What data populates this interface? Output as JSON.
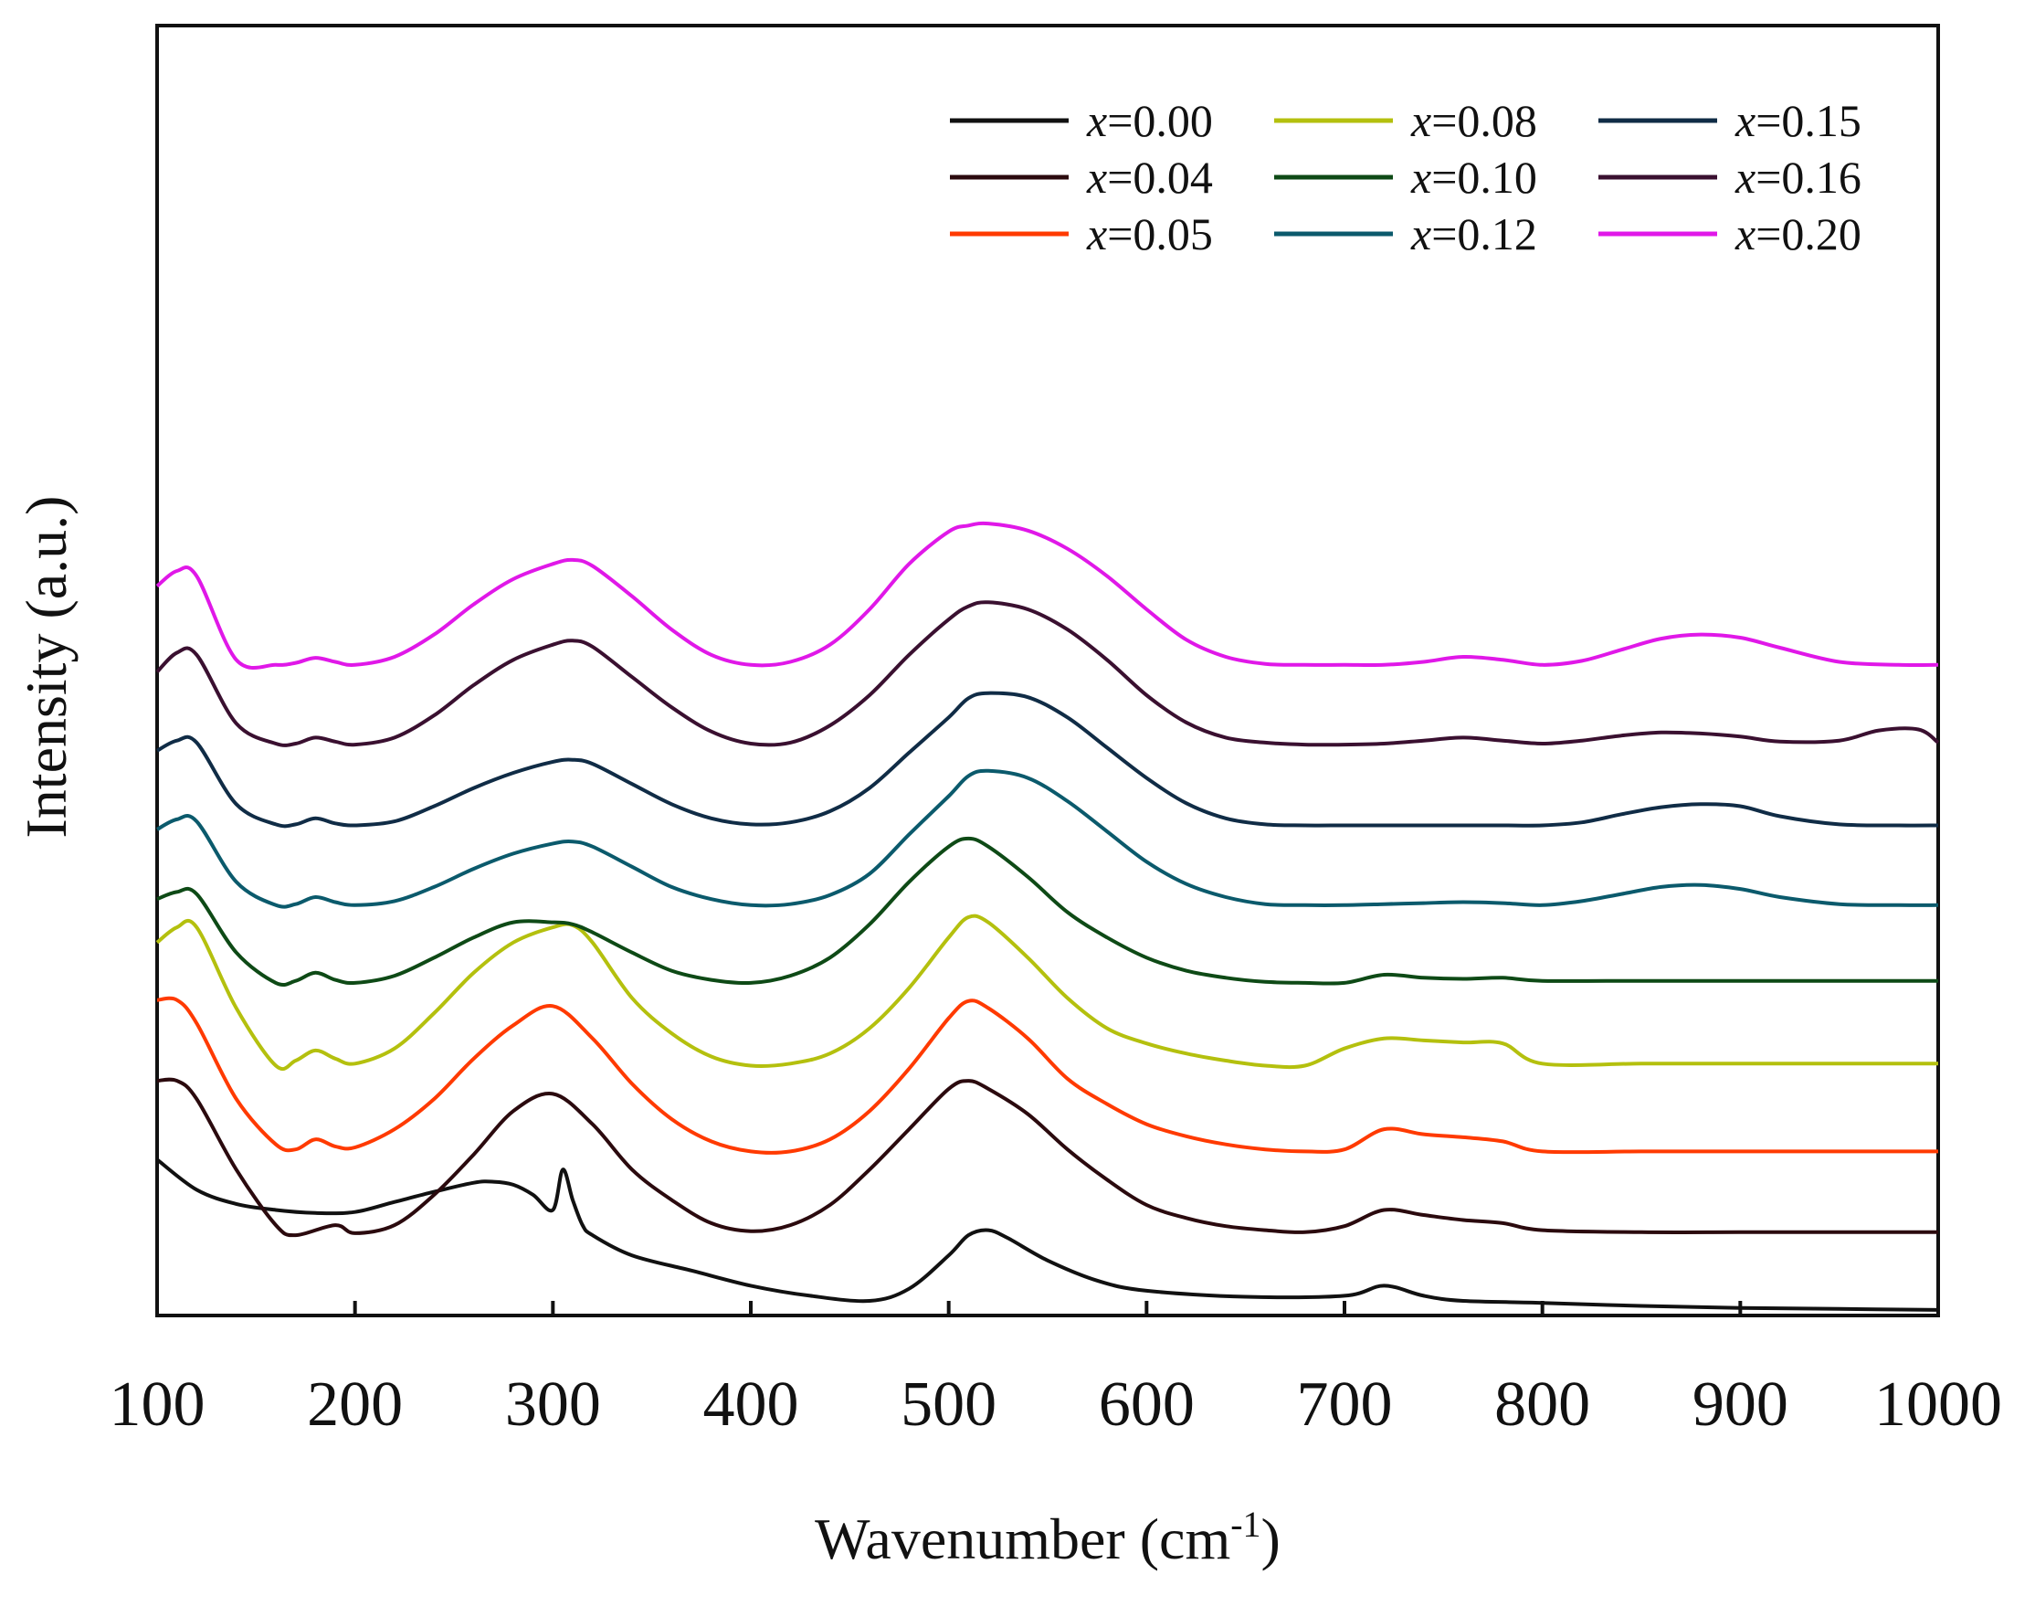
{
  "chart_data": {
    "type": "line",
    "title": "",
    "xlabel": "Wavenumber (cm-1)",
    "xlabel_main": "Wavenumber (cm",
    "xlabel_sup": "-1",
    "xlabel_close": ")",
    "ylabel": "Intensity (a.u.)",
    "xlim": [
      100,
      1000
    ],
    "ylim": [
      0,
      100
    ],
    "y_ticks_shown": false,
    "grid": false,
    "legend_position": "top-right",
    "x_ticks": [
      100,
      200,
      300,
      400,
      500,
      600,
      700,
      800,
      900,
      1000
    ],
    "x_tick_labels": [
      "100",
      "200",
      "300",
      "400",
      "500",
      "600",
      "700",
      "800",
      "900",
      "1000"
    ],
    "series": [
      {
        "name": "x=0.00",
        "x_var": "x",
        "value_label": "=0.00",
        "color": "#111111",
        "x": [
          100,
          120,
          140,
          160,
          180,
          200,
          220,
          240,
          260,
          270,
          280,
          290,
          300,
          305,
          310,
          315,
          320,
          340,
          370,
          400,
          430,
          460,
          480,
          500,
          510,
          520,
          530,
          550,
          575,
          600,
          650,
          700,
          720,
          740,
          760,
          800,
          850,
          900,
          950,
          1000
        ],
        "y": [
          15.0,
          12.0,
          10.6,
          10.0,
          9.7,
          9.8,
          10.8,
          11.8,
          12.7,
          12.8,
          12.5,
          11.5,
          10.0,
          14.0,
          11.0,
          8.5,
          7.5,
          5.5,
          4.0,
          2.5,
          1.5,
          1.0,
          2.2,
          5.5,
          7.5,
          8.0,
          7.2,
          5.0,
          3.0,
          2.0,
          1.4,
          1.5,
          2.5,
          1.5,
          1.0,
          0.8,
          0.5,
          0.3,
          0.2,
          0.1
        ]
      },
      {
        "name": "x=0.04",
        "x_var": "x",
        "value_label": "=0.04",
        "color": "#2b0a0e",
        "x": [
          100,
          110,
          120,
          140,
          160,
          170,
          190,
          200,
          220,
          240,
          260,
          280,
          300,
          320,
          340,
          360,
          380,
          400,
          420,
          440,
          460,
          480,
          500,
          510,
          520,
          540,
          560,
          580,
          600,
          620,
          640,
          660,
          680,
          700,
          720,
          740,
          760,
          780,
          800,
          850,
          900,
          950,
          1000
        ],
        "y": [
          22.8,
          22.8,
          21.0,
          14.0,
          8.5,
          7.5,
          8.5,
          7.7,
          8.5,
          11.5,
          15.5,
          19.8,
          21.5,
          18.5,
          14.0,
          11.0,
          8.7,
          7.9,
          8.5,
          10.5,
          14.0,
          18.0,
          22.0,
          22.8,
          22.0,
          19.5,
          16.0,
          13.0,
          10.5,
          9.2,
          8.4,
          8.0,
          7.8,
          8.4,
          10.0,
          9.5,
          9.0,
          8.7,
          8.0,
          7.8,
          7.8,
          7.8,
          7.8
        ]
      },
      {
        "name": "x=0.05",
        "x_var": "x",
        "value_label": "=0.05",
        "color": "#ff3a00",
        "x": [
          100,
          110,
          120,
          140,
          160,
          170,
          180,
          190,
          200,
          220,
          240,
          260,
          280,
          300,
          320,
          340,
          360,
          380,
          400,
          420,
          440,
          460,
          480,
          500,
          510,
          520,
          540,
          560,
          580,
          600,
          620,
          640,
          660,
          680,
          700,
          720,
          740,
          760,
          780,
          800,
          850,
          900,
          950,
          1000
        ],
        "y": [
          30.8,
          30.8,
          28.5,
          21.0,
          16.5,
          16.0,
          17.0,
          16.3,
          16.2,
          18.0,
          21.0,
          25.0,
          28.3,
          30.2,
          27.0,
          22.5,
          19.0,
          16.8,
          15.8,
          15.8,
          17.0,
          19.8,
          24.0,
          29.0,
          30.7,
          30.0,
          27.0,
          23.0,
          20.5,
          18.5,
          17.3,
          16.5,
          16.0,
          15.8,
          16.0,
          18.0,
          17.5,
          17.2,
          16.8,
          15.8,
          15.8,
          15.8,
          15.8,
          15.8
        ]
      },
      {
        "name": "x=0.08",
        "x_var": "x",
        "value_label": "=0.08",
        "color": "#b4c00e",
        "x": [
          100,
          110,
          120,
          140,
          160,
          170,
          180,
          190,
          200,
          220,
          240,
          260,
          280,
          300,
          310,
          320,
          340,
          360,
          380,
          400,
          420,
          440,
          460,
          480,
          500,
          510,
          520,
          540,
          560,
          580,
          600,
          620,
          640,
          660,
          680,
          700,
          720,
          740,
          760,
          780,
          800,
          850,
          900,
          950,
          1000
        ],
        "y": [
          36.5,
          38.0,
          38.0,
          30.0,
          24.3,
          24.8,
          25.8,
          25.0,
          24.5,
          26.0,
          29.5,
          33.5,
          36.5,
          38.0,
          38.2,
          36.5,
          31.0,
          27.5,
          25.2,
          24.3,
          24.5,
          25.5,
          28.0,
          32.0,
          37.0,
          39.0,
          38.5,
          35.0,
          31.0,
          28.0,
          26.5,
          25.5,
          24.8,
          24.3,
          24.3,
          26.0,
          27.0,
          26.8,
          26.6,
          26.5,
          24.5,
          24.5,
          24.5,
          24.5,
          24.5
        ]
      },
      {
        "name": "x=0.10",
        "x_var": "x",
        "value_label": "=0.10",
        "color": "#0e4a16",
        "x": [
          100,
          110,
          120,
          140,
          160,
          170,
          180,
          190,
          200,
          220,
          240,
          260,
          280,
          300,
          310,
          320,
          340,
          360,
          380,
          400,
          420,
          440,
          460,
          480,
          500,
          510,
          520,
          540,
          560,
          580,
          600,
          620,
          640,
          660,
          680,
          700,
          720,
          740,
          760,
          780,
          800,
          850,
          900,
          950,
          1000
        ],
        "y": [
          40.8,
          41.5,
          41.3,
          35.5,
          32.5,
          32.7,
          33.5,
          32.8,
          32.5,
          33.2,
          35.0,
          37.0,
          38.5,
          38.5,
          38.3,
          37.5,
          35.5,
          33.7,
          32.8,
          32.5,
          33.2,
          35.0,
          38.3,
          42.5,
          46.0,
          46.8,
          46.0,
          43.0,
          39.5,
          37.0,
          35.0,
          33.7,
          33.0,
          32.6,
          32.5,
          32.5,
          33.3,
          33.0,
          32.9,
          33.0,
          32.7,
          32.7,
          32.7,
          32.7,
          32.7
        ]
      },
      {
        "name": "x=0.12",
        "x_var": "x",
        "value_label": "=0.12",
        "color": "#0b5a6c",
        "x": [
          100,
          110,
          120,
          140,
          160,
          170,
          180,
          190,
          200,
          220,
          240,
          260,
          280,
          300,
          310,
          320,
          340,
          360,
          380,
          400,
          420,
          440,
          460,
          480,
          500,
          510,
          520,
          540,
          560,
          580,
          600,
          620,
          640,
          660,
          680,
          700,
          720,
          740,
          760,
          780,
          800,
          820,
          840,
          860,
          880,
          900,
          920,
          950,
          980,
          1000
        ],
        "y": [
          47.7,
          48.7,
          48.5,
          42.5,
          40.2,
          40.3,
          41.0,
          40.5,
          40.2,
          40.6,
          42.0,
          43.8,
          45.3,
          46.3,
          46.5,
          46.0,
          44.0,
          42.0,
          40.8,
          40.2,
          40.3,
          41.2,
          43.3,
          47.2,
          51.0,
          53.0,
          53.5,
          52.8,
          50.5,
          47.5,
          44.5,
          42.3,
          41.0,
          40.3,
          40.2,
          40.2,
          40.3,
          40.4,
          40.5,
          40.4,
          40.2,
          40.6,
          41.3,
          42.0,
          42.2,
          41.8,
          41.0,
          40.3,
          40.2,
          40.2
        ]
      },
      {
        "name": "x=0.15",
        "x_var": "x",
        "value_label": "=0.15",
        "color": "#102c46",
        "x": [
          100,
          110,
          120,
          140,
          160,
          170,
          180,
          190,
          200,
          220,
          240,
          260,
          280,
          300,
          310,
          320,
          340,
          360,
          380,
          400,
          420,
          440,
          460,
          480,
          500,
          510,
          520,
          540,
          560,
          580,
          600,
          620,
          640,
          660,
          680,
          700,
          720,
          740,
          760,
          780,
          800,
          820,
          840,
          860,
          880,
          900,
          920,
          950,
          980,
          1000
        ],
        "y": [
          55.5,
          56.5,
          56.3,
          50.2,
          48.2,
          48.2,
          48.8,
          48.3,
          48.1,
          48.5,
          50.0,
          51.8,
          53.3,
          54.4,
          54.6,
          54.2,
          52.2,
          50.2,
          48.8,
          48.2,
          48.4,
          49.5,
          51.8,
          55.3,
          58.8,
          60.7,
          61.2,
          60.8,
          58.8,
          55.8,
          52.8,
          50.3,
          48.8,
          48.2,
          48.1,
          48.1,
          48.1,
          48.1,
          48.1,
          48.1,
          48.1,
          48.4,
          49.2,
          49.9,
          50.2,
          50.0,
          49.0,
          48.2,
          48.1,
          48.1
        ]
      },
      {
        "name": "x=0.16",
        "x_var": "x",
        "value_label": "=0.16",
        "color": "#3a1030",
        "x": [
          100,
          110,
          120,
          140,
          160,
          170,
          180,
          190,
          200,
          220,
          240,
          260,
          280,
          300,
          310,
          320,
          340,
          360,
          380,
          400,
          420,
          440,
          460,
          480,
          500,
          510,
          520,
          540,
          560,
          580,
          600,
          620,
          640,
          660,
          680,
          700,
          720,
          740,
          760,
          780,
          800,
          820,
          840,
          860,
          880,
          900,
          920,
          950,
          970,
          990,
          1000
        ],
        "y": [
          63.3,
          65.2,
          65.0,
          58.2,
          56.2,
          56.2,
          56.8,
          56.4,
          56.1,
          56.8,
          59.0,
          62.0,
          64.5,
          66.0,
          66.4,
          65.8,
          62.8,
          59.8,
          57.4,
          56.2,
          56.3,
          58.0,
          61.0,
          65.0,
          68.5,
          69.8,
          70.2,
          69.5,
          67.5,
          64.5,
          61.0,
          58.3,
          56.8,
          56.3,
          56.1,
          56.1,
          56.2,
          56.5,
          56.8,
          56.5,
          56.2,
          56.5,
          57.0,
          57.3,
          57.2,
          56.9,
          56.4,
          56.5,
          57.5,
          57.6,
          56.3
        ]
      },
      {
        "name": "x=0.20",
        "x_var": "x",
        "value_label": "=0.20",
        "color": "#e018e8",
        "x": [
          100,
          110,
          120,
          140,
          160,
          170,
          180,
          190,
          200,
          220,
          240,
          260,
          280,
          300,
          310,
          320,
          340,
          360,
          380,
          400,
          420,
          440,
          460,
          480,
          500,
          510,
          520,
          540,
          560,
          580,
          600,
          620,
          640,
          660,
          680,
          700,
          720,
          740,
          760,
          780,
          800,
          820,
          840,
          860,
          880,
          900,
          920,
          950,
          980,
          1000
        ],
        "y": [
          71.8,
          73.3,
          72.8,
          64.5,
          64.0,
          64.2,
          64.7,
          64.3,
          64.0,
          64.8,
          67.0,
          70.0,
          72.5,
          74.0,
          74.4,
          73.8,
          70.8,
          67.5,
          65.0,
          64.0,
          64.3,
          66.0,
          69.5,
          74.0,
          77.2,
          77.8,
          78.0,
          77.3,
          75.5,
          72.8,
          69.5,
          66.5,
          64.8,
          64.1,
          64.0,
          64.0,
          64.0,
          64.3,
          64.8,
          64.5,
          64.0,
          64.4,
          65.5,
          66.6,
          67.0,
          66.7,
          65.7,
          64.3,
          64.0,
          64.0
        ]
      }
    ]
  }
}
